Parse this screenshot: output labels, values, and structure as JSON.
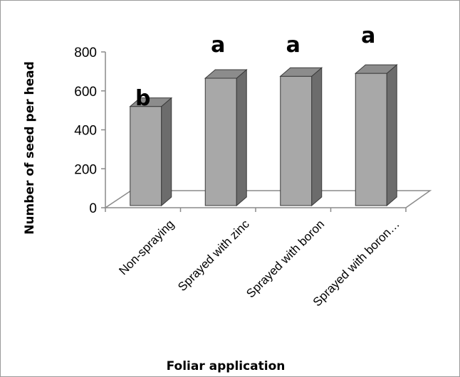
{
  "chart_data": {
    "type": "bar",
    "title": "",
    "xlabel": "Foliar application",
    "ylabel": "Number of seed per head",
    "categories": [
      "Non-spraying",
      "Sprayed with zinc",
      "Sprayed with boron",
      "Sprayed with boron…"
    ],
    "values": [
      520,
      665,
      675,
      690
    ],
    "annotations": [
      "b",
      "a",
      "a",
      "a"
    ],
    "ylim": [
      0,
      800
    ],
    "yticks": [
      "0",
      "200",
      "400",
      "600",
      "800"
    ],
    "grid": false,
    "legend": "none",
    "colors": {
      "bar_front": "#a8a8a8",
      "bar_side": "#6c6c6c",
      "bar_top": "#8c8c8c",
      "bar_edge": "#3a3a3a",
      "floor": "#ffffff",
      "axis": "#8a8a8a"
    }
  }
}
